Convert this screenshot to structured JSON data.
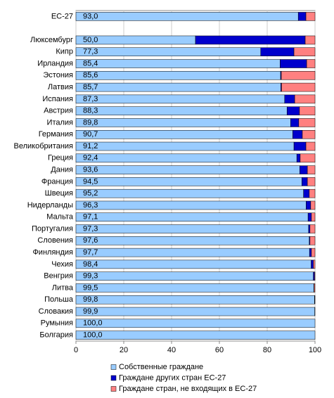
{
  "chart_data": {
    "type": "stacked-bar-horizontal",
    "categories": [
      "ЕС-27",
      null,
      "Люксембург",
      "Кипр",
      "Ирландия",
      "Эстония",
      "Латвия",
      "Испания",
      "Австрия",
      "Италия",
      "Германия",
      "Великобритания",
      "Греция",
      "Дания",
      "Франция",
      "Швеция",
      "Нидерланды",
      "Мальта",
      "Португалия",
      "Словения",
      "Финляндия",
      "Чехия",
      "Венгрия",
      "Литва",
      "Польша",
      "Словакия",
      "Румыния",
      "Болгария"
    ],
    "series": [
      {
        "name": "Собственные граждане",
        "color": "#99ccff",
        "values": [
          93.0,
          null,
          50.0,
          77.3,
          85.4,
          85.6,
          85.7,
          87.3,
          88.3,
          89.8,
          90.7,
          91.2,
          92.4,
          93.6,
          94.5,
          95.2,
          96.3,
          97.1,
          97.3,
          97.6,
          97.7,
          98.4,
          99.3,
          99.5,
          99.8,
          99.9,
          100.0,
          100.0
        ],
        "value_labels": [
          "93,0",
          null,
          "50,0",
          "77,3",
          "85,4",
          "85,6",
          "85,7",
          "87,3",
          "88,3",
          "89,8",
          "90,7",
          "91,2",
          "92,4",
          "93,6",
          "94,5",
          "95,2",
          "96,3",
          "97,1",
          "97,3",
          "97,6",
          "97,7",
          "98,4",
          "99,3",
          "99,5",
          "99,8",
          "99,9",
          "100,0",
          "100,0"
        ]
      },
      {
        "name": "Граждане других стран ЕС-27",
        "color": "#0000cc",
        "values": [
          3.2,
          null,
          45.9,
          13.9,
          11.1,
          0.3,
          0.3,
          4.2,
          5.2,
          3.4,
          4.0,
          5.0,
          1.4,
          3.2,
          2.3,
          2.4,
          1.9,
          1.4,
          0.6,
          0.3,
          0.8,
          0.9,
          0.5,
          0.1,
          0.1,
          0.1,
          0.0,
          0.0
        ]
      },
      {
        "name": "Граждане стран, не входящих в ЕС-27",
        "color": "#ff8080",
        "values": [
          3.8,
          null,
          4.1,
          8.8,
          3.5,
          14.1,
          14.0,
          8.5,
          6.5,
          6.8,
          5.3,
          3.8,
          6.2,
          3.2,
          3.2,
          2.4,
          1.8,
          1.5,
          2.1,
          2.1,
          1.5,
          0.7,
          0.2,
          0.4,
          0.1,
          0.0,
          0.0,
          0.0
        ]
      }
    ],
    "xlim": [
      0,
      100
    ],
    "xticks": [
      0,
      20,
      40,
      60,
      80,
      100
    ],
    "grid": true
  }
}
